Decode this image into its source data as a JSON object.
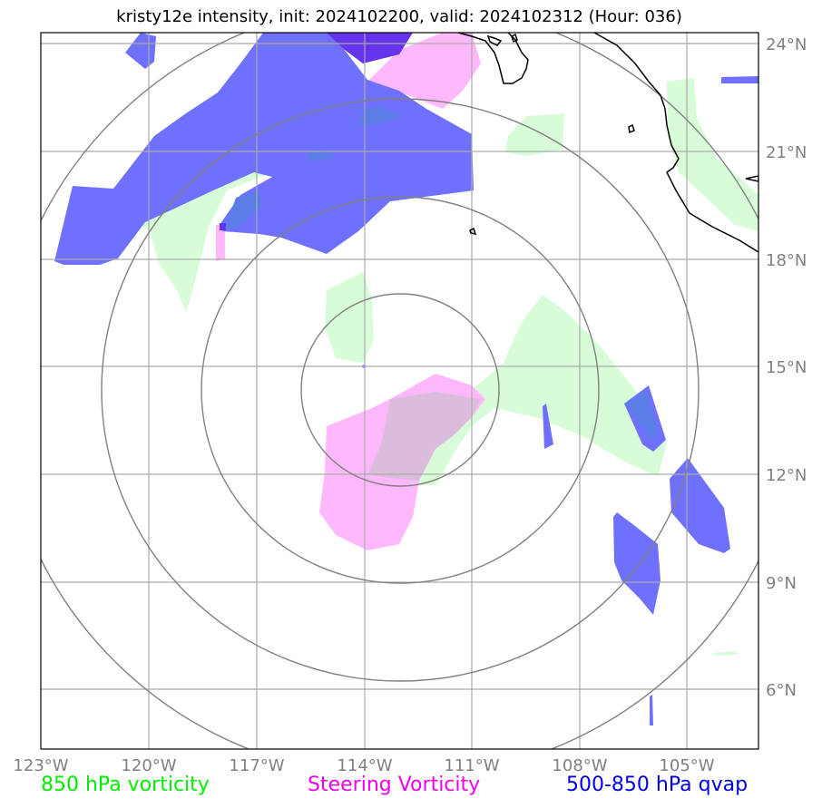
{
  "title": "kristy12e intensity, init: 2024102200, valid: 2024102312 (Hour: 036)",
  "lon_labels": [
    "123°W",
    "120°W",
    "117°W",
    "114°W",
    "111°W",
    "108°W",
    "105°W"
  ],
  "lat_labels": [
    "24°N",
    "21°N",
    "18°N",
    "15°N",
    "12°N",
    "9°N",
    "6°N"
  ],
  "legend": {
    "vort850": "850 hPa vorticity",
    "steering": "Steering Vorticity",
    "qvap": "500-850 hPa qvap"
  },
  "colors": {
    "vort850": "#00ee00",
    "steering": "#ee00ee",
    "qvap": "#0000dd",
    "vort850_fill": "#d8fcd8",
    "steering_fill": "#ffb8fc",
    "qvap_fill": "#7070ff",
    "grid": "#aaaaaa",
    "range_rings": "#808080",
    "coast": "#000000",
    "tick_label": "#808080"
  },
  "map_extent": {
    "lon_min": -123,
    "lon_max": -103,
    "lat_min": 4.3,
    "lat_max": 24.3
  },
  "storm_center": {
    "lon": -113,
    "lat": 14.3
  }
}
